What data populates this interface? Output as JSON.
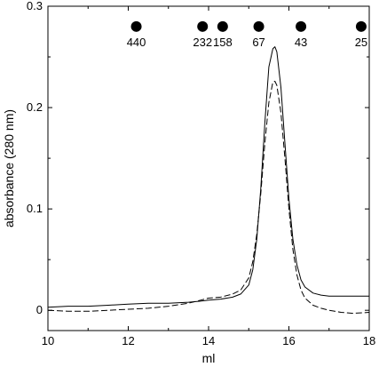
{
  "chart_data": {
    "type": "line",
    "xlabel": "ml",
    "ylabel": "absorbance (280 nm)",
    "xlim": [
      10,
      18
    ],
    "ylim": [
      -0.02,
      0.3
    ],
    "x_ticks": [
      10,
      12,
      14,
      16,
      18
    ],
    "x_tick_labels": [
      "10",
      "12",
      "14",
      "16",
      "18"
    ],
    "y_ticks": [
      0,
      0.1,
      0.2,
      0.3
    ],
    "y_tick_labels": [
      "0",
      "0.1",
      "0.2",
      "0.3"
    ],
    "grid": false,
    "series": [
      {
        "line_style": "solid",
        "color": "#000000",
        "x": [
          10.0,
          10.5,
          11.0,
          11.5,
          12.0,
          12.5,
          13.0,
          13.5,
          13.8,
          14.0,
          14.3,
          14.6,
          14.8,
          15.0,
          15.1,
          15.2,
          15.3,
          15.4,
          15.5,
          15.6,
          15.65,
          15.7,
          15.8,
          15.9,
          16.0,
          16.1,
          16.2,
          16.3,
          16.4,
          16.6,
          16.8,
          17.0,
          17.5,
          18.0
        ],
        "y": [
          0.003,
          0.004,
          0.004,
          0.005,
          0.006,
          0.007,
          0.007,
          0.008,
          0.009,
          0.01,
          0.011,
          0.013,
          0.016,
          0.025,
          0.04,
          0.07,
          0.12,
          0.185,
          0.24,
          0.258,
          0.26,
          0.255,
          0.22,
          0.165,
          0.11,
          0.07,
          0.045,
          0.03,
          0.023,
          0.017,
          0.015,
          0.014,
          0.014,
          0.014
        ]
      },
      {
        "line_style": "dashed",
        "color": "#000000",
        "x": [
          10.0,
          10.5,
          11.0,
          11.5,
          12.0,
          12.5,
          13.0,
          13.5,
          13.8,
          14.0,
          14.3,
          14.6,
          14.8,
          15.0,
          15.1,
          15.2,
          15.3,
          15.4,
          15.5,
          15.6,
          15.65,
          15.7,
          15.8,
          15.9,
          16.0,
          16.1,
          16.2,
          16.3,
          16.4,
          16.6,
          16.8,
          17.0,
          17.3,
          17.6,
          18.0
        ],
        "y": [
          0.0,
          -0.001,
          -0.001,
          0.0,
          0.001,
          0.002,
          0.004,
          0.007,
          0.01,
          0.012,
          0.013,
          0.016,
          0.02,
          0.032,
          0.048,
          0.075,
          0.115,
          0.165,
          0.205,
          0.225,
          0.226,
          0.222,
          0.195,
          0.15,
          0.1,
          0.06,
          0.035,
          0.02,
          0.012,
          0.005,
          0.002,
          0.0,
          -0.002,
          -0.003,
          -0.002
        ]
      }
    ],
    "markers": [
      {
        "x": 12.2,
        "label": "440"
      },
      {
        "x": 13.85,
        "label": "232"
      },
      {
        "x": 14.35,
        "label": "158"
      },
      {
        "x": 15.25,
        "label": "67"
      },
      {
        "x": 16.3,
        "label": "43"
      },
      {
        "x": 17.8,
        "label": "25"
      }
    ],
    "marker_y": 0.28
  }
}
